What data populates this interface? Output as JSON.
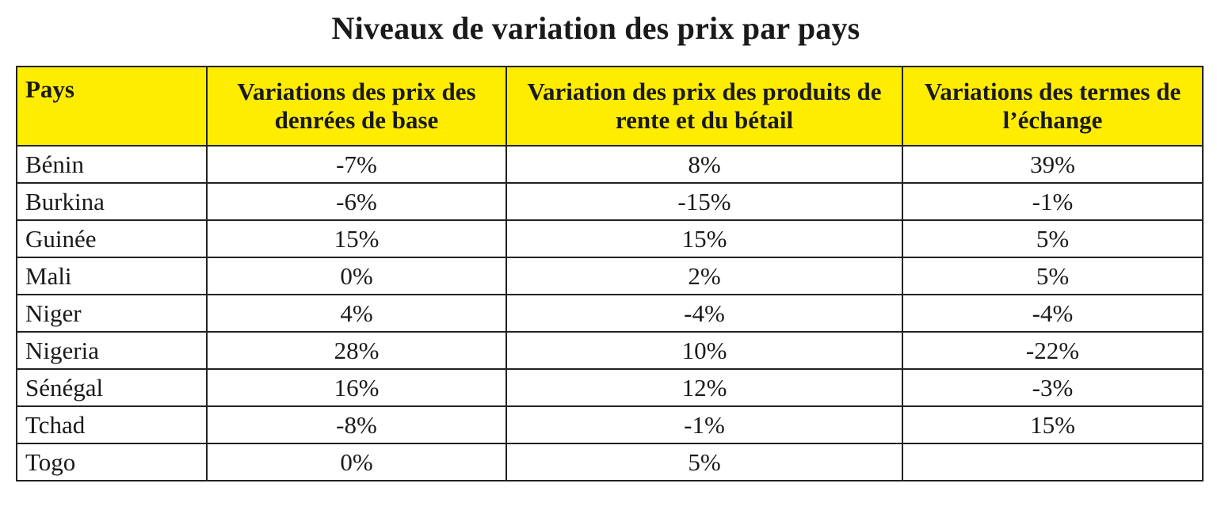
{
  "title": "Niveaux de variation des prix par pays",
  "table": {
    "headers": [
      "Pays",
      "Variations des prix des denrées de base",
      "Variation des prix des produits de rente et du bétail",
      "Variations des termes de l’échange"
    ],
    "rows": [
      [
        "Bénin",
        "-7%",
        "8%",
        "39%"
      ],
      [
        "Burkina",
        "-6%",
        "-15%",
        "-1%"
      ],
      [
        "Guinée",
        "15%",
        "15%",
        "5%"
      ],
      [
        "Mali",
        "0%",
        "2%",
        "5%"
      ],
      [
        "Niger",
        "4%",
        "-4%",
        "-4%"
      ],
      [
        "Nigeria",
        "28%",
        "10%",
        "-22%"
      ],
      [
        "Sénégal",
        "16%",
        "12%",
        "-3%"
      ],
      [
        "Tchad",
        "-8%",
        "-1%",
        "15%"
      ],
      [
        "Togo",
        "0%",
        "5%",
        ""
      ]
    ]
  },
  "colors": {
    "header_background": "#ffed00",
    "border": "#222222",
    "text": "#1a1a1a"
  }
}
